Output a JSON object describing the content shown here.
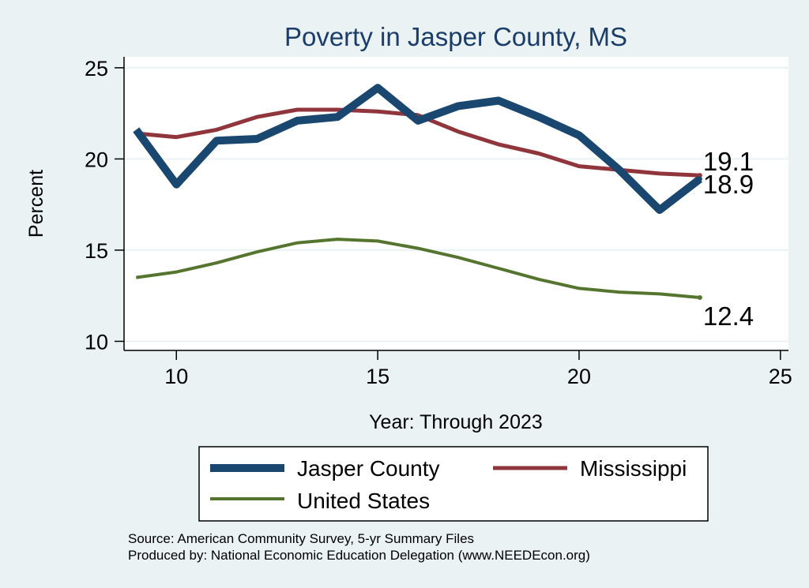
{
  "chart_data": {
    "type": "line",
    "title": "Poverty in Jasper County, MS",
    "xlabel": "Year: Through 2023",
    "ylabel": "Percent",
    "xlim": [
      8.7,
      25.2
    ],
    "ylim": [
      9.5,
      25.6
    ],
    "xticks": [
      10,
      15,
      20,
      25
    ],
    "yticks": [
      10,
      15,
      20,
      25
    ],
    "grid": true,
    "legend_position": "bottom",
    "x": [
      9,
      10,
      11,
      12,
      13,
      14,
      15,
      16,
      17,
      18,
      19,
      20,
      21,
      22,
      23
    ],
    "series": [
      {
        "name": "Jasper County",
        "color": "#1a476f",
        "values": [
          21.6,
          18.6,
          21.0,
          21.1,
          22.1,
          22.3,
          23.9,
          22.1,
          22.9,
          23.2,
          22.3,
          21.3,
          19.4,
          17.2,
          18.9
        ],
        "end_label": "18.9"
      },
      {
        "name": "Mississippi",
        "color": "#90353b",
        "values": [
          21.4,
          21.2,
          21.6,
          22.3,
          22.7,
          22.7,
          22.6,
          22.4,
          21.5,
          20.8,
          20.3,
          19.6,
          19.4,
          19.2,
          19.1
        ],
        "end_label": "19.1"
      },
      {
        "name": "United States",
        "color": "#55752f",
        "values": [
          13.5,
          13.8,
          14.3,
          14.9,
          15.4,
          15.6,
          15.5,
          15.1,
          14.6,
          14.0,
          13.4,
          12.9,
          12.7,
          12.6,
          12.4
        ],
        "end_label": "12.4"
      }
    ]
  },
  "footer": {
    "source": "Source: American Community Survey, 5-yr Summary Files",
    "produced": "Produced by: National Economic Education Delegation (www.NEEDEcon.org)"
  },
  "colors": {
    "background": "#eaf2f3",
    "plot_background": "#ffffff",
    "grid": "#eaf2f3",
    "title": "#1a3d6b"
  }
}
